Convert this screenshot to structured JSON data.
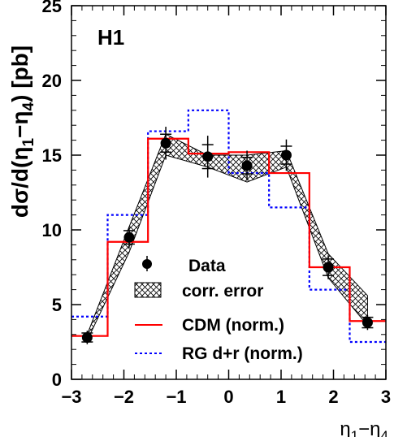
{
  "chart_data": {
    "type": "line",
    "experiment_label": "H1",
    "xlabel": "η",
    "xlabel_subs": [
      "1",
      "4"
    ],
    "ylabel": "dσ/d(η",
    "ylabel_mid": "−η",
    "ylabel_end": ") [pb]",
    "ylabel_subs": [
      "1",
      "4"
    ],
    "xlim": [
      -3,
      3
    ],
    "ylim": [
      0,
      25
    ],
    "x_ticks": [
      -3,
      -2,
      -1,
      0,
      1,
      2,
      3
    ],
    "x_tick_labels": [
      "−3",
      "−2",
      "−1",
      "0",
      "1",
      "2",
      "3"
    ],
    "y_ticks": [
      0,
      5,
      10,
      15,
      20,
      25
    ],
    "y_tick_labels": [
      "0",
      "5",
      "10",
      "15",
      "20",
      "25"
    ],
    "bin_edges": [
      -3.0,
      -2.31,
      -1.54,
      -0.77,
      0.0,
      0.77,
      1.54,
      2.31,
      3.0
    ],
    "data": {
      "name": "Data",
      "x": [
        -2.7,
        -1.9,
        -1.2,
        -0.4,
        0.35,
        1.1,
        1.9,
        2.65
      ],
      "y": [
        2.8,
        9.5,
        15.8,
        14.9,
        14.3,
        15.0,
        7.5,
        3.8
      ],
      "err_stat": [
        0.3,
        0.45,
        0.6,
        0.8,
        0.55,
        0.6,
        0.55,
        0.35
      ],
      "err_tot": [
        0.45,
        0.7,
        1.1,
        1.4,
        1.0,
        1.05,
        0.8,
        0.5
      ]
    },
    "corr_error": {
      "name": "corr. error",
      "x": [
        -2.7,
        -1.9,
        -1.2,
        -0.4,
        0.35,
        1.1,
        1.9,
        2.65
      ],
      "upper": [
        3.0,
        10.2,
        16.4,
        15.0,
        15.0,
        15.3,
        8.4,
        5.6
      ],
      "lower": [
        2.6,
        8.5,
        15.0,
        14.2,
        13.2,
        14.2,
        6.8,
        3.6
      ]
    },
    "cdm": {
      "name": "CDM (norm.)",
      "color": "#ff0000",
      "values": [
        2.9,
        9.2,
        16.1,
        15.1,
        15.2,
        13.8,
        7.5,
        3.9
      ]
    },
    "rg": {
      "name": "RG d+r (norm.)",
      "color": "#0000ff",
      "values": [
        4.2,
        11.0,
        16.6,
        18.0,
        13.8,
        11.5,
        6.0,
        2.5
      ]
    }
  }
}
